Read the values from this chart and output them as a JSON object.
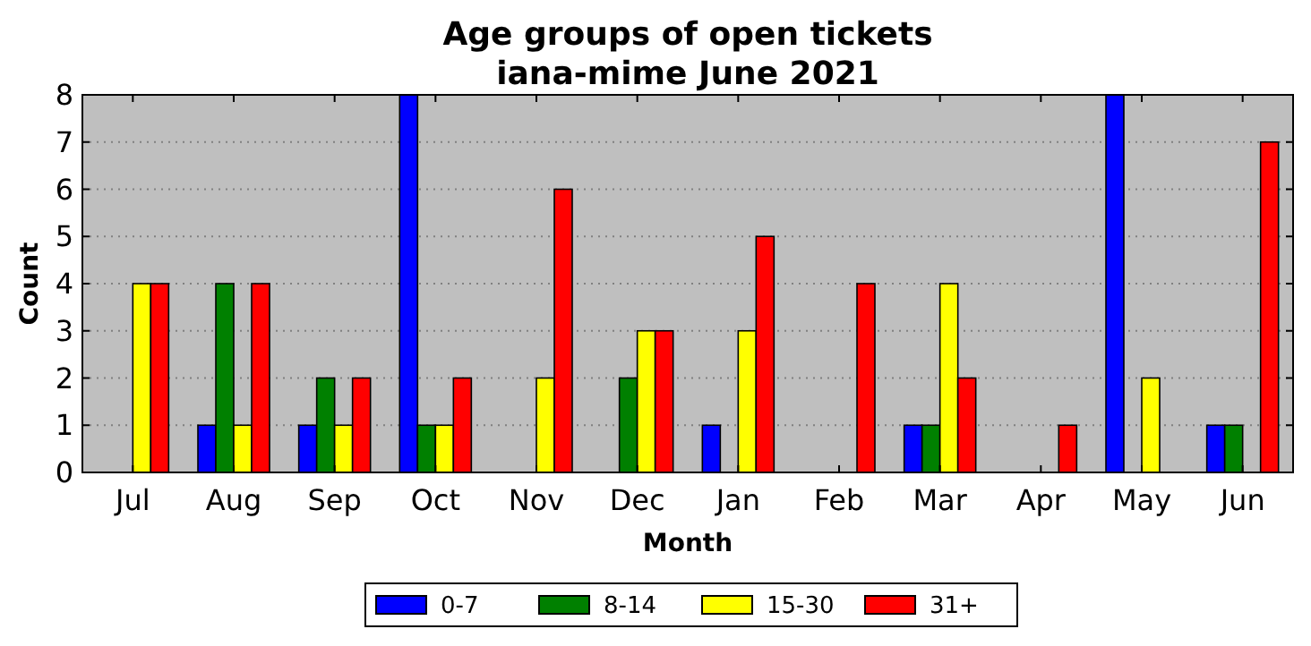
{
  "chart_data": {
    "type": "bar",
    "title": "Age groups of open tickets",
    "subtitle": "iana-mime June 2021",
    "xlabel": "Month",
    "ylabel": "Count",
    "categories": [
      "Jul",
      "Aug",
      "Sep",
      "Oct",
      "Nov",
      "Dec",
      "Jan",
      "Feb",
      "Mar",
      "Apr",
      "May",
      "Jun"
    ],
    "series": [
      {
        "name": "0-7",
        "color": "#0000ff",
        "values": [
          0,
          1,
          1,
          8,
          0,
          0,
          1,
          0,
          1,
          0,
          8,
          1
        ]
      },
      {
        "name": "8-14",
        "color": "#008000",
        "values": [
          0,
          4,
          2,
          1,
          0,
          2,
          0,
          0,
          1,
          0,
          0,
          1
        ]
      },
      {
        "name": "15-30",
        "color": "#ffff00",
        "values": [
          4,
          1,
          1,
          1,
          2,
          3,
          3,
          0,
          4,
          0,
          2,
          0
        ]
      },
      {
        "name": "31+",
        "color": "#ff0000",
        "values": [
          4,
          4,
          2,
          2,
          6,
          3,
          5,
          4,
          2,
          1,
          0,
          7
        ]
      }
    ],
    "ylim": [
      0,
      8
    ],
    "yticks": [
      0,
      1,
      2,
      3,
      4,
      5,
      6,
      7,
      8
    ],
    "grid": "y",
    "legend": "bottom"
  }
}
